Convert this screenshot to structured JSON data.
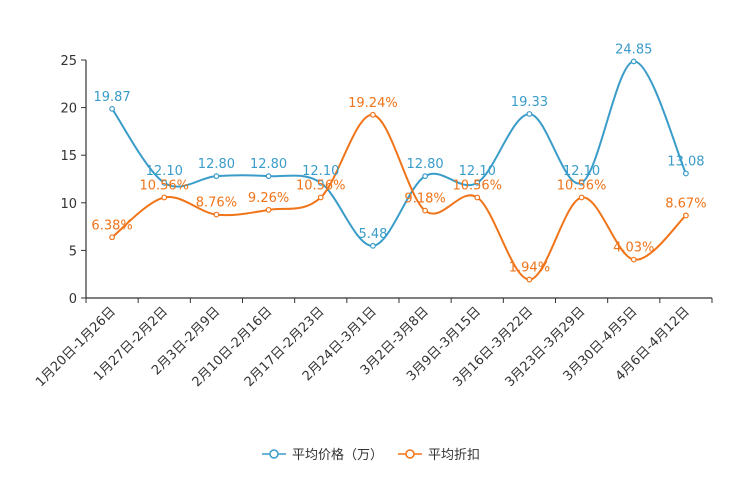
{
  "chart_data": {
    "type": "line",
    "title": "",
    "xlabel": "",
    "ylabel": "",
    "ylim": [
      0,
      25
    ],
    "yticks": [
      0,
      5,
      10,
      15,
      20,
      25
    ],
    "grid": false,
    "legend_position": "bottom",
    "categories": [
      "1月20日-1月26日",
      "1月27日-2月2日",
      "2月3日-2月9日",
      "2月10日-2月16日",
      "2月17日-2月23日",
      "2月24日-3月1日",
      "3月2日-3月8日",
      "3月9日-3月15日",
      "3月16日-3月22日",
      "3月23日-3月29日",
      "3月30日-4月5日",
      "4月6日-4月12日"
    ],
    "series": [
      {
        "name": "平均价格（万）",
        "color": "#3a9cc9",
        "values": [
          19.87,
          12.1,
          12.8,
          12.8,
          12.1,
          5.48,
          12.8,
          12.1,
          19.33,
          12.1,
          24.85,
          13.08
        ],
        "labels": [
          "19.87",
          "12.10",
          "12.80",
          "12.80",
          "12.10",
          "5.48",
          "12.80",
          "12.10",
          "19.33",
          "12.10",
          "24.85",
          "13.08"
        ]
      },
      {
        "name": "平均折扣",
        "color": "#f07419",
        "values": [
          6.38,
          10.56,
          8.76,
          9.26,
          10.56,
          19.24,
          9.18,
          10.56,
          1.94,
          10.56,
          4.03,
          8.67
        ],
        "labels": [
          "6.38%",
          "10.56%",
          "8.76%",
          "9.26%",
          "10.56%",
          "19.24%",
          "9.18%",
          "10.56%",
          "1.94%",
          "10.56%",
          "4.03%",
          "8.67%"
        ]
      }
    ]
  }
}
